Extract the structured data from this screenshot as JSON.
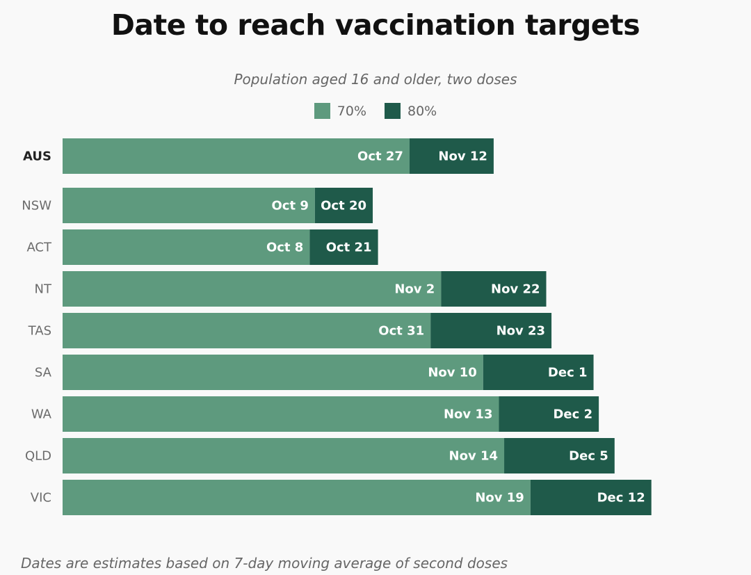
{
  "title": "Date to reach vaccination targets",
  "subtitle": "Population aged 16 and older, two doses",
  "footnote": "Dates are estimates based on 7-day moving average of second doses",
  "colors": {
    "p70": "#5e9a7e",
    "p80": "#1f5a4a"
  },
  "chart_data": {
    "type": "bar",
    "orientation": "horizontal",
    "stacked": true,
    "title": "Date to reach vaccination targets",
    "subtitle": "Population aged 16 and older, two doses",
    "legend": [
      "70%",
      "80%"
    ],
    "legend_position": "top-center",
    "categories": [
      "AUS",
      "NSW",
      "ACT",
      "NT",
      "TAS",
      "SA",
      "WA",
      "QLD",
      "VIC"
    ],
    "series": [
      {
        "name": "70%",
        "values": [
          "2021-10-27",
          "2021-10-09",
          "2021-10-08",
          "2021-11-02",
          "2021-10-31",
          "2021-11-10",
          "2021-11-13",
          "2021-11-14",
          "2021-11-19"
        ],
        "labels": [
          "Oct 27",
          "Oct 9",
          "Oct 8",
          "Nov 2",
          "Oct 31",
          "Nov 10",
          "Nov 13",
          "Nov 14",
          "Nov 19"
        ]
      },
      {
        "name": "80%",
        "values": [
          "2021-11-12",
          "2021-10-20",
          "2021-10-21",
          "2021-11-22",
          "2021-11-23",
          "2021-12-01",
          "2021-12-02",
          "2021-12-05",
          "2021-12-12"
        ],
        "labels": [
          "Nov 12",
          "Oct 20",
          "Oct 21",
          "Nov 22",
          "Nov 23",
          "Dec 1",
          "Dec 2",
          "Dec 5",
          "Dec 12"
        ]
      }
    ],
    "highlight_category": "AUS",
    "grid": false,
    "axis_visible": false
  }
}
